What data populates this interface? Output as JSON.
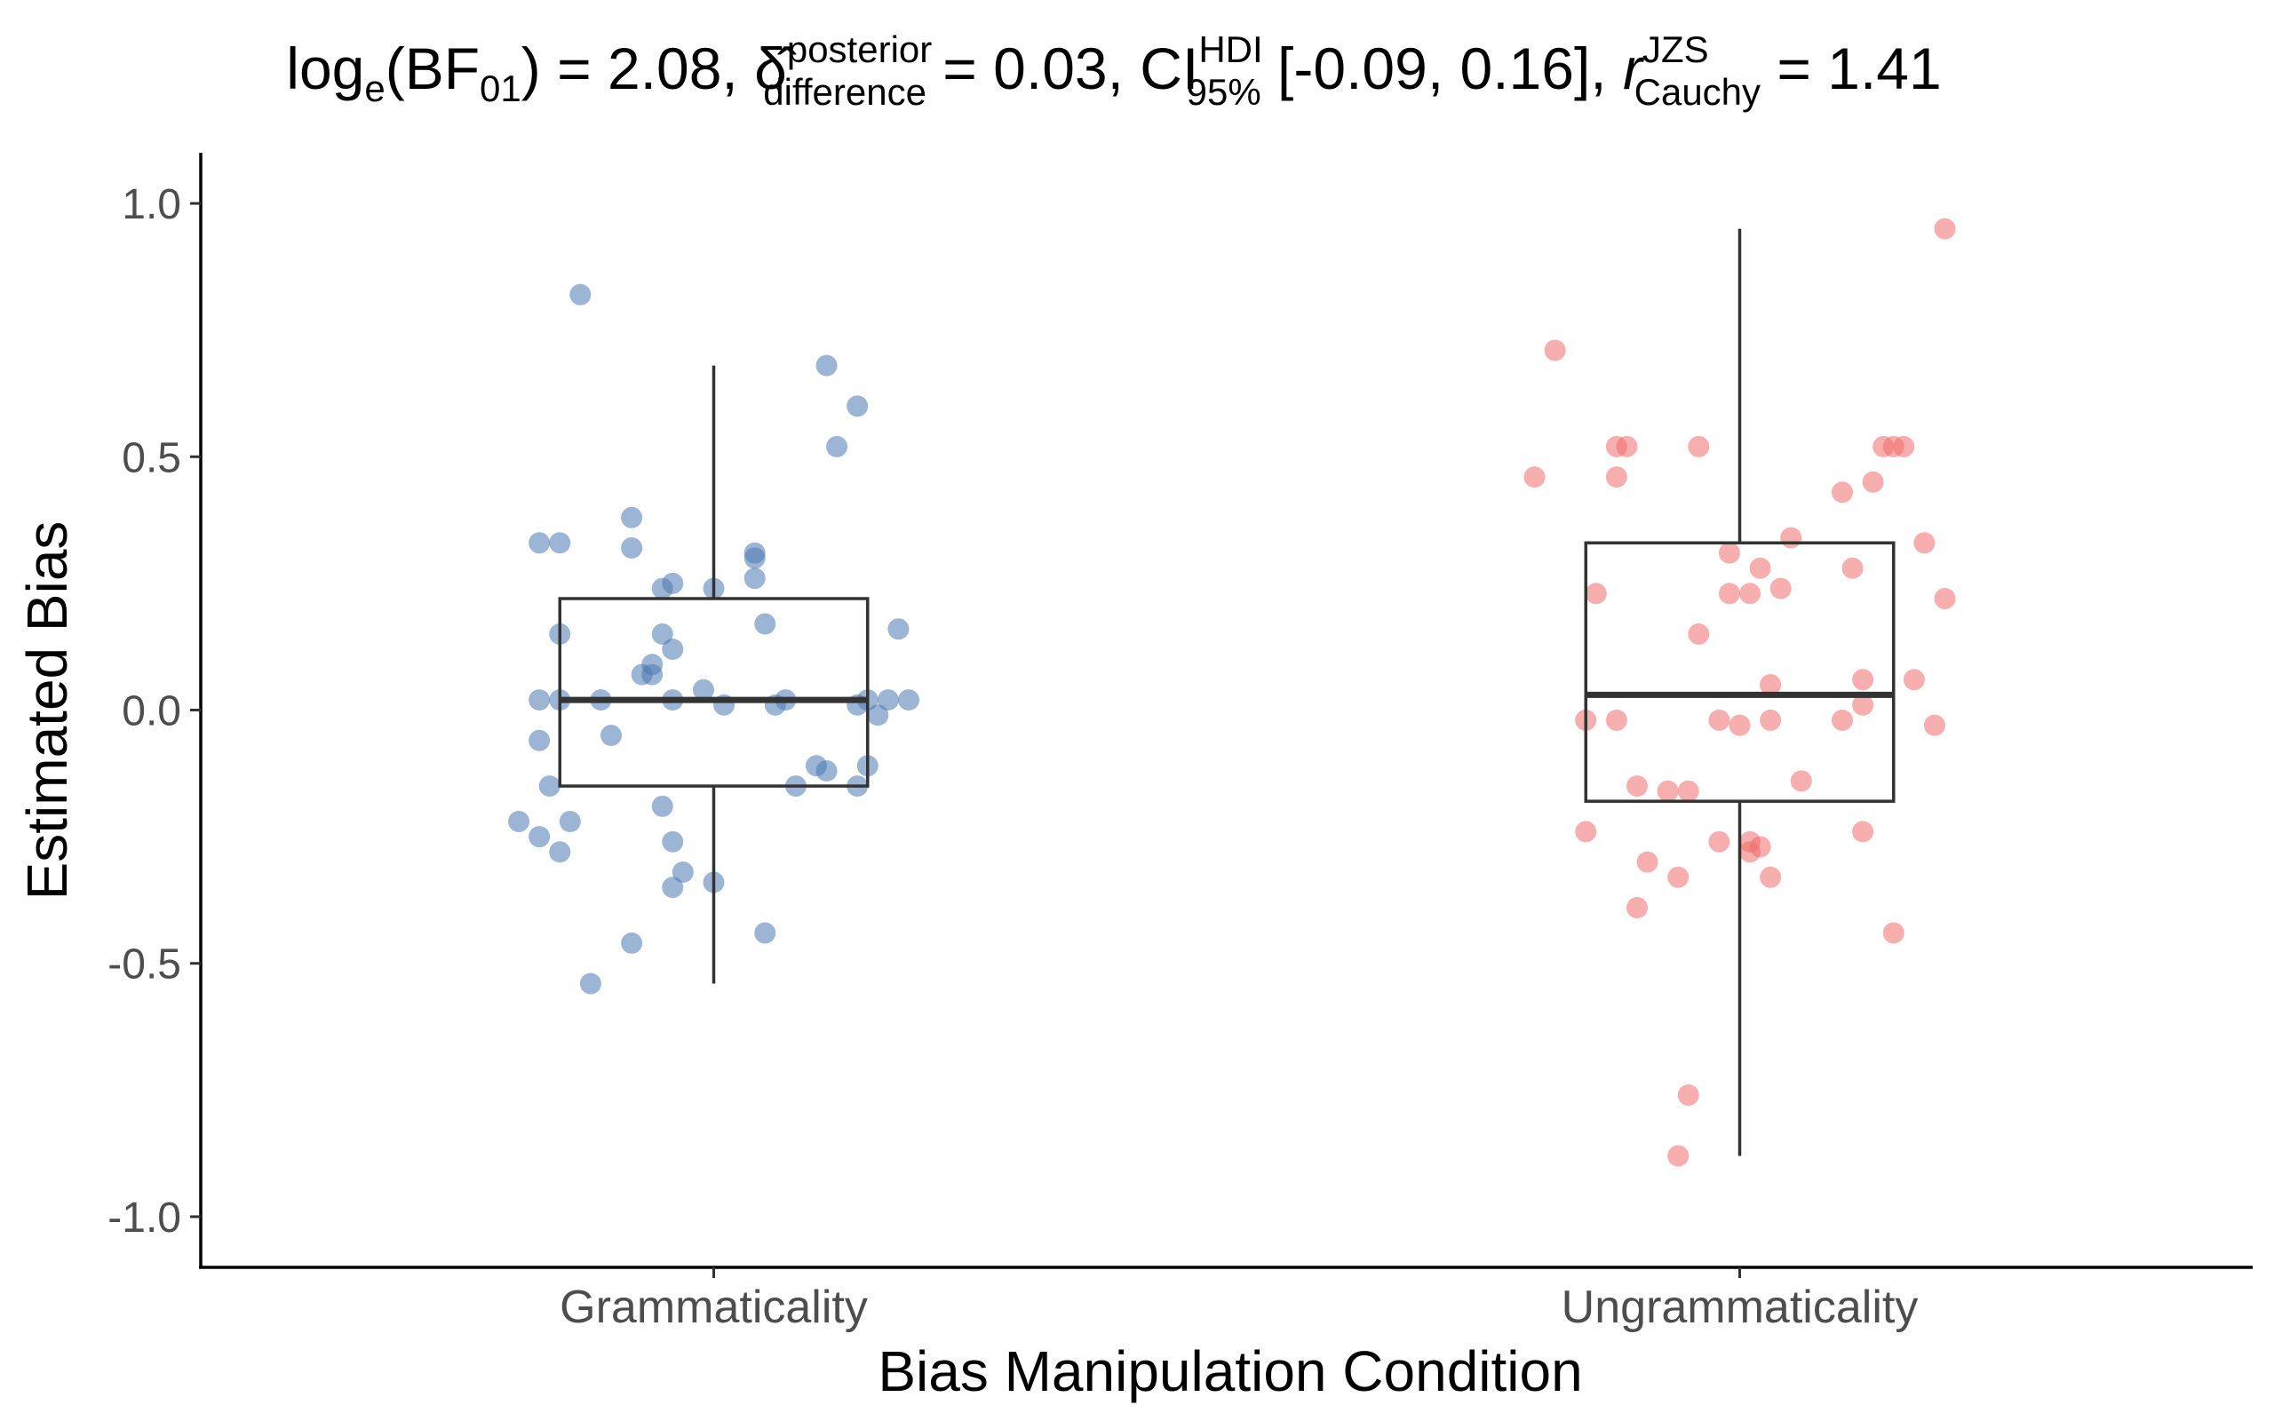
{
  "chart_data": {
    "type": "box",
    "title": {
      "log_base": "log",
      "log_sub": "e",
      "bf_open": "(BF",
      "bf_sub": "01",
      "part1": ") = 2.08, ",
      "delta_sup": "posterior",
      "delta_sub": "difference",
      "part2": " = 0.03, CI",
      "ci_sup": "HDI",
      "ci_sub": "95%",
      "part3": " [-0.09, 0.16], ",
      "r": "r",
      "r_sup": "JZS",
      "r_sub": "Cauchy",
      "part4": " = 1.41"
    },
    "xlabel": "Bias Manipulation Condition",
    "ylabel": "Estimated Bias",
    "ylim": [
      -1.1,
      1.1
    ],
    "yticks": [
      1.0,
      0.5,
      0.0,
      -0.5,
      -1.0
    ],
    "ytick_labels": [
      "1.0",
      "0.5",
      "0.0",
      "-0.5",
      "-1.0"
    ],
    "grid": false,
    "categories": [
      "Grammaticality",
      "Ungrammaticality"
    ],
    "series": [
      {
        "color": "#4a78b0",
        "box": {
          "whisker_low": -0.54,
          "q1": -0.15,
          "median": 0.02,
          "q3": 0.22,
          "whisker_high": 0.68
        },
        "points": [
          [
            -0.13,
            0.82
          ],
          [
            0.11,
            0.68
          ],
          [
            0.14,
            0.6
          ],
          [
            0.12,
            0.52
          ],
          [
            -0.08,
            0.38
          ],
          [
            -0.17,
            0.33
          ],
          [
            -0.15,
            0.33
          ],
          [
            -0.08,
            0.32
          ],
          [
            0.04,
            0.31
          ],
          [
            0.04,
            0.3
          ],
          [
            0.04,
            0.26
          ],
          [
            -0.04,
            0.25
          ],
          [
            -0.05,
            0.24
          ],
          [
            0.0,
            0.24
          ],
          [
            0.05,
            0.17
          ],
          [
            -0.15,
            0.15
          ],
          [
            -0.05,
            0.15
          ],
          [
            0.18,
            0.16
          ],
          [
            -0.04,
            0.12
          ],
          [
            -0.06,
            0.09
          ],
          [
            -0.06,
            0.07
          ],
          [
            -0.07,
            0.07
          ],
          [
            -0.01,
            0.04
          ],
          [
            -0.17,
            0.02
          ],
          [
            -0.15,
            0.02
          ],
          [
            -0.11,
            0.02
          ],
          [
            -0.04,
            0.02
          ],
          [
            0.07,
            0.02
          ],
          [
            0.15,
            0.02
          ],
          [
            0.17,
            0.02
          ],
          [
            0.19,
            0.02
          ],
          [
            0.01,
            0.01
          ],
          [
            0.06,
            0.01
          ],
          [
            0.14,
            0.01
          ],
          [
            -0.1,
            -0.05
          ],
          [
            -0.17,
            -0.06
          ],
          [
            0.16,
            -0.01
          ],
          [
            0.1,
            -0.11
          ],
          [
            0.11,
            -0.12
          ],
          [
            0.15,
            -0.11
          ],
          [
            0.08,
            -0.15
          ],
          [
            0.14,
            -0.15
          ],
          [
            -0.16,
            -0.15
          ],
          [
            -0.19,
            -0.22
          ],
          [
            -0.14,
            -0.22
          ],
          [
            -0.17,
            -0.25
          ],
          [
            -0.05,
            -0.19
          ],
          [
            -0.15,
            -0.28
          ],
          [
            -0.04,
            -0.26
          ],
          [
            -0.03,
            -0.32
          ],
          [
            0.0,
            -0.34
          ],
          [
            -0.04,
            -0.35
          ],
          [
            0.05,
            -0.44
          ],
          [
            -0.08,
            -0.46
          ],
          [
            -0.12,
            -0.54
          ]
        ]
      },
      {
        "color": "#f06b6b",
        "box": {
          "whisker_low": -0.88,
          "q1": -0.18,
          "median": 0.03,
          "q3": 0.33,
          "whisker_high": 0.95
        },
        "points": [
          [
            0.2,
            0.95
          ],
          [
            -0.18,
            0.71
          ],
          [
            -0.11,
            0.52
          ],
          [
            -0.12,
            0.52
          ],
          [
            -0.04,
            0.52
          ],
          [
            0.14,
            0.52
          ],
          [
            0.16,
            0.52
          ],
          [
            0.15,
            0.52
          ],
          [
            -0.2,
            0.46
          ],
          [
            -0.12,
            0.46
          ],
          [
            0.13,
            0.45
          ],
          [
            0.1,
            0.43
          ],
          [
            0.05,
            0.34
          ],
          [
            -0.01,
            0.31
          ],
          [
            0.02,
            0.28
          ],
          [
            0.11,
            0.28
          ],
          [
            0.18,
            0.33
          ],
          [
            -0.14,
            0.23
          ],
          [
            -0.01,
            0.23
          ],
          [
            0.01,
            0.23
          ],
          [
            0.04,
            0.24
          ],
          [
            0.2,
            0.22
          ],
          [
            -0.04,
            0.15
          ],
          [
            0.03,
            0.05
          ],
          [
            0.12,
            0.06
          ],
          [
            0.17,
            0.06
          ],
          [
            0.12,
            0.01
          ],
          [
            -0.12,
            -0.02
          ],
          [
            -0.15,
            -0.02
          ],
          [
            -0.02,
            -0.02
          ],
          [
            0.03,
            -0.02
          ],
          [
            0.1,
            -0.02
          ],
          [
            0.0,
            -0.03
          ],
          [
            0.19,
            -0.03
          ],
          [
            -0.1,
            -0.15
          ],
          [
            -0.07,
            -0.16
          ],
          [
            -0.05,
            -0.16
          ],
          [
            0.06,
            -0.14
          ],
          [
            -0.15,
            -0.24
          ],
          [
            -0.02,
            -0.26
          ],
          [
            0.01,
            -0.26
          ],
          [
            0.12,
            -0.24
          ],
          [
            0.01,
            -0.28
          ],
          [
            0.02,
            -0.27
          ],
          [
            -0.09,
            -0.3
          ],
          [
            -0.06,
            -0.33
          ],
          [
            0.03,
            -0.33
          ],
          [
            -0.1,
            -0.39
          ],
          [
            0.15,
            -0.44
          ],
          [
            -0.05,
            -0.76
          ],
          [
            -0.06,
            -0.88
          ]
        ]
      }
    ]
  }
}
